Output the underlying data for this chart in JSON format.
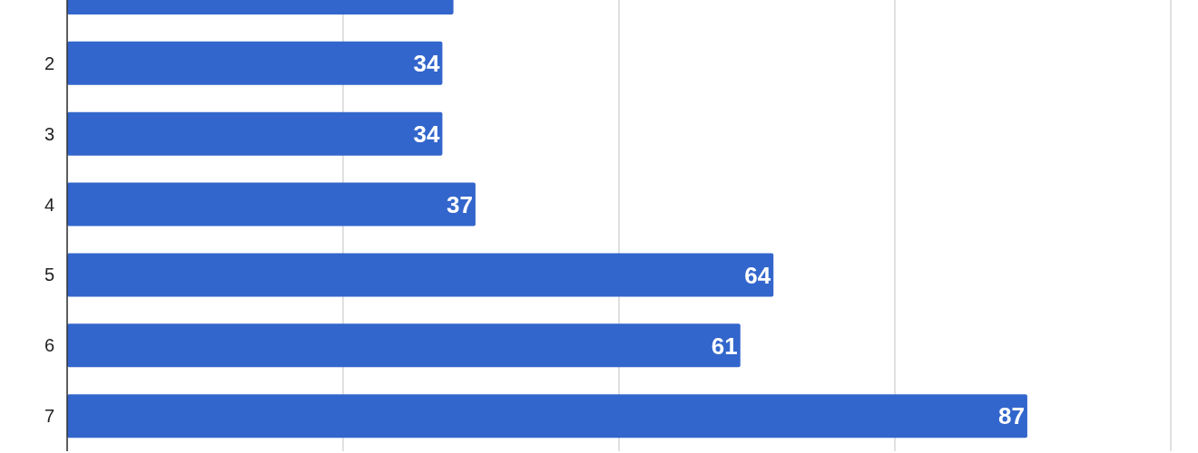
{
  "chart_data": {
    "type": "bar",
    "orientation": "horizontal",
    "categories": [
      null,
      "2",
      "3",
      "4",
      "5",
      "6",
      "7"
    ],
    "values": [
      35,
      34,
      34,
      37,
      64,
      61,
      87
    ],
    "value_labels": [
      null,
      "34",
      "34",
      "37",
      "64",
      "61",
      "87"
    ],
    "color": "#3366cc",
    "xlim": [
      0,
      100
    ],
    "xticks": [
      0,
      25,
      50,
      75,
      100
    ],
    "tick_labels": "y",
    "grid": "x"
  }
}
